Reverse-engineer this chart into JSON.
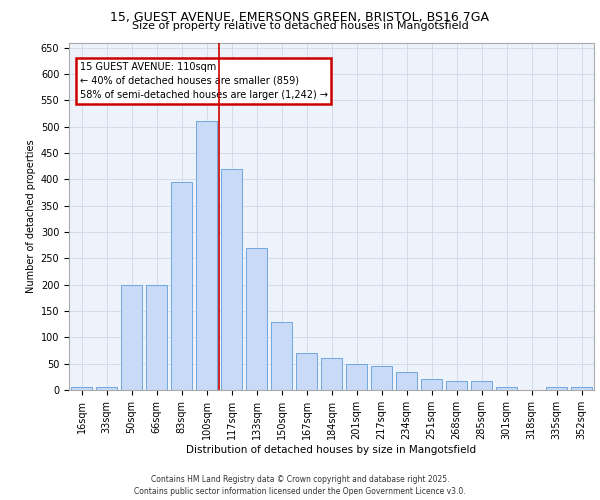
{
  "title_line1": "15, GUEST AVENUE, EMERSONS GREEN, BRISTOL, BS16 7GA",
  "title_line2": "Size of property relative to detached houses in Mangotsfield",
  "xlabel": "Distribution of detached houses by size in Mangotsfield",
  "ylabel": "Number of detached properties",
  "categories": [
    "16sqm",
    "33sqm",
    "50sqm",
    "66sqm",
    "83sqm",
    "100sqm",
    "117sqm",
    "133sqm",
    "150sqm",
    "167sqm",
    "184sqm",
    "201sqm",
    "217sqm",
    "234sqm",
    "251sqm",
    "268sqm",
    "285sqm",
    "301sqm",
    "318sqm",
    "335sqm",
    "352sqm"
  ],
  "values": [
    5,
    5,
    200,
    200,
    395,
    510,
    420,
    270,
    130,
    70,
    60,
    50,
    45,
    35,
    20,
    18,
    18,
    5,
    0,
    5,
    5
  ],
  "bar_color": "#c9daf8",
  "bar_edge_color": "#6fa8dc",
  "grid_color": "#d0d8e8",
  "background_color": "#eef2fb",
  "red_line_x": 5.5,
  "annotation_text": "15 GUEST AVENUE: 110sqm\n← 40% of detached houses are smaller (859)\n58% of semi-detached houses are larger (1,242) →",
  "annotation_box_color": "#ffffff",
  "annotation_box_edge_color": "#cc0000",
  "footer_line1": "Contains HM Land Registry data © Crown copyright and database right 2025.",
  "footer_line2": "Contains public sector information licensed under the Open Government Licence v3.0.",
  "ylim": [
    0,
    660
  ],
  "yticks": [
    0,
    50,
    100,
    150,
    200,
    250,
    300,
    350,
    400,
    450,
    500,
    550,
    600,
    650
  ],
  "title_fontsize": 9,
  "subtitle_fontsize": 8,
  "tick_fontsize": 7,
  "ylabel_fontsize": 7,
  "xlabel_fontsize": 7.5,
  "footer_fontsize": 5.5,
  "annot_fontsize": 7
}
